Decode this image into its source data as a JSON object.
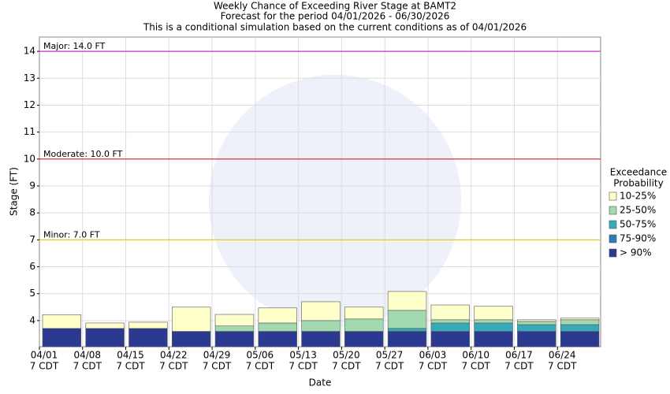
{
  "chart_data": {
    "type": "floating-bar",
    "title": "Weekly Chance of Exceeding River Stage at BAMT2",
    "subtitle": "Forecast for the period 04/01/2026 - 06/30/2026",
    "subtitle2": "This is a conditional simulation based on the current conditions as of 04/01/2026",
    "x_label": "Date",
    "y_label": "Stage (FT)",
    "legend_title": [
      "Exceedance",
      "Probability"
    ],
    "categories": [
      "04/01",
      "04/08",
      "04/15",
      "04/22",
      "04/29",
      "05/06",
      "05/13",
      "05/20",
      "05/27",
      "06/03",
      "06/10",
      "06/17",
      "06/24"
    ],
    "category_times": [
      "7 CDT",
      "7 CDT",
      "7 CDT",
      "7 CDT",
      "7 CDT",
      "7 CDT",
      "7 CDT",
      "7 CDT",
      "7 CDT",
      "7 CDT",
      "7 CDT",
      "7 CDT",
      "7 CDT"
    ],
    "series": [
      {
        "name": "> 90%",
        "color": "#2b3990",
        "values": [
          3.71,
          3.71,
          3.71,
          3.6,
          3.6,
          3.6,
          3.6,
          3.6,
          3.6,
          3.6,
          3.6,
          3.6,
          3.6
        ]
      },
      {
        "name": "75-90%",
        "color": "#2f7bb6",
        "values": [
          3.71,
          3.71,
          3.71,
          3.6,
          3.6,
          3.6,
          3.6,
          3.6,
          3.6,
          3.6,
          3.6,
          3.6,
          3.6
        ]
      },
      {
        "name": "50-75%",
        "color": "#38a9b8",
        "values": [
          3.71,
          3.71,
          3.71,
          3.6,
          3.6,
          3.6,
          3.6,
          3.6,
          3.71,
          3.91,
          3.91,
          3.85,
          3.85
        ]
      },
      {
        "name": "25-50%",
        "color": "#a3d9b1",
        "values": [
          3.71,
          3.71,
          3.71,
          3.6,
          3.8,
          3.91,
          4.0,
          4.06,
          4.38,
          4.03,
          4.03,
          3.97,
          4.03
        ]
      },
      {
        "name": "10-25%",
        "color": "#ffffcc",
        "values": [
          4.22,
          3.91,
          3.94,
          4.5,
          4.23,
          4.47,
          4.7,
          4.5,
          5.08,
          4.58,
          4.53,
          4.03,
          4.09
        ]
      }
    ],
    "thresholds": [
      {
        "label": "Major: 14.0 FT",
        "value": 14,
        "color": "#cc33cc"
      },
      {
        "label": "Moderate: 10.0 FT",
        "value": 10,
        "color": "#dd2222"
      },
      {
        "label": "Minor: 7.0 FT",
        "value": 7,
        "color": "#e0d000"
      }
    ],
    "ylim": [
      3.03,
      14.53
    ],
    "yticks": [
      4,
      5,
      6,
      7,
      8,
      9,
      10,
      11,
      12,
      13,
      14
    ],
    "grid": true
  }
}
